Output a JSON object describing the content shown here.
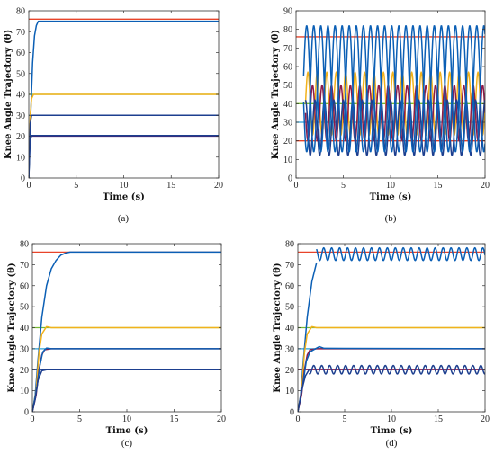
{
  "chart_data": [
    {
      "panel_label": "(a)",
      "type": "line",
      "xlabel": "Time (s)",
      "ylabel": "Knee Angle Trajectory (θ)",
      "xlim": [
        0,
        20
      ],
      "ylim": [
        0,
        80
      ],
      "x_ticks": [
        0,
        5,
        10,
        15,
        20
      ],
      "y_ticks": [
        0,
        10,
        20,
        30,
        40,
        50,
        60,
        70,
        80
      ],
      "grid": false,
      "series": [
        {
          "kind": "ref",
          "color": "#e8442a",
          "x": [
            0,
            20
          ],
          "y": [
            76,
            76
          ]
        },
        {
          "kind": "ref",
          "color": "#77bb33",
          "x": [
            0,
            20
          ],
          "y": [
            40,
            40
          ]
        },
        {
          "kind": "ref",
          "color": "#2a9fd6",
          "x": [
            0,
            20
          ],
          "y": [
            30,
            30
          ]
        },
        {
          "kind": "ref",
          "color": "#4d1f6e",
          "x": [
            0,
            20
          ],
          "y": [
            20,
            20
          ]
        },
        {
          "color": "#0b5fb5",
          "x": [
            0,
            0.2,
            0.4,
            0.6,
            0.8,
            1.0,
            1.5,
            20
          ],
          "y": [
            0,
            30,
            55,
            68,
            73,
            75,
            75,
            75
          ]
        },
        {
          "color": "#f2b21c",
          "x": [
            0,
            0.15,
            0.3,
            0.5,
            0.8,
            20
          ],
          "y": [
            0,
            30,
            38,
            40,
            40,
            40
          ]
        },
        {
          "color": "#1d3f8f",
          "x": [
            0,
            0.15,
            0.3,
            0.5,
            20
          ],
          "y": [
            0,
            26,
            30,
            30,
            30
          ]
        },
        {
          "color": "#1d3f8f",
          "x": [
            0,
            0.15,
            0.3,
            0.5,
            20
          ],
          "y": [
            0,
            18,
            20.3,
            20.3,
            20.3
          ]
        }
      ]
    },
    {
      "panel_label": "(b)",
      "type": "line",
      "xlabel": "Time (s)",
      "ylabel": "Knee Angle Trajectory (θ)",
      "xlim": [
        0,
        20
      ],
      "ylim": [
        0,
        90
      ],
      "x_ticks": [
        0,
        5,
        10,
        15,
        20
      ],
      "y_ticks": [
        0,
        10,
        20,
        30,
        40,
        50,
        60,
        70,
        80,
        90
      ],
      "grid": false,
      "series": [
        {
          "kind": "ref",
          "color": "#e8442a",
          "x": [
            0,
            20
          ],
          "y": [
            76,
            76
          ]
        },
        {
          "kind": "ref",
          "color": "#77bb33",
          "x": [
            0,
            20
          ],
          "y": [
            40,
            40
          ]
        },
        {
          "kind": "ref",
          "color": "#2a9fd6",
          "x": [
            0,
            20
          ],
          "y": [
            30,
            30
          ]
        },
        {
          "kind": "ref",
          "color": "#e8442a",
          "x": [
            0,
            20
          ],
          "y": [
            20,
            20
          ]
        },
        {
          "kind": "osc",
          "color": "#f2b21c",
          "start": 1.0,
          "center": 40,
          "amp": 17,
          "period": 1.0,
          "phase": 0.0
        },
        {
          "kind": "osc",
          "color": "#8b1a4a",
          "start": 1.0,
          "center": 35,
          "amp": 15,
          "period": 1.0,
          "phase": 0.5
        },
        {
          "kind": "osc",
          "color": "#1d3f8f",
          "start": 1.0,
          "center": 27,
          "amp": 15,
          "period": 1.0,
          "phase": 0.25
        },
        {
          "kind": "osc",
          "color": "#0b5fb5",
          "start": 0.8,
          "center": 48,
          "amp": 34,
          "period": 1.5,
          "phase": 0.0
        },
        {
          "kind": "osc",
          "color": "#0b5fb5",
          "start": 0.8,
          "center": 48,
          "amp": 34,
          "period": 1.5,
          "phase": 0.5
        }
      ]
    },
    {
      "panel_label": "(c)",
      "type": "line",
      "xlabel": "Time (s)",
      "ylabel": "Knee Angle Trajectory (θ)",
      "xlim": [
        0,
        20
      ],
      "ylim": [
        0,
        80
      ],
      "x_ticks": [
        0,
        5,
        10,
        15,
        20
      ],
      "y_ticks": [
        0,
        10,
        20,
        30,
        40,
        50,
        60,
        70,
        80
      ],
      "grid": false,
      "series": [
        {
          "kind": "ref",
          "color": "#e8442a",
          "x": [
            0,
            20
          ],
          "y": [
            76,
            76
          ]
        },
        {
          "kind": "ref",
          "color": "#77bb33",
          "x": [
            0,
            20
          ],
          "y": [
            40,
            40
          ]
        },
        {
          "kind": "ref",
          "color": "#2a9fd6",
          "x": [
            0,
            20
          ],
          "y": [
            30,
            30
          ]
        },
        {
          "kind": "ref",
          "color": "#1d3f8f",
          "x": [
            0,
            20
          ],
          "y": [
            20,
            20
          ]
        },
        {
          "color": "#0b5fb5",
          "x": [
            0,
            0.3,
            0.6,
            1.0,
            1.5,
            2.0,
            2.5,
            3.0,
            3.5,
            4.0,
            20
          ],
          "y": [
            0,
            8,
            25,
            45,
            60,
            68,
            72,
            74.5,
            75.5,
            76,
            76
          ]
        },
        {
          "color": "#f2b21c",
          "x": [
            0,
            0.4,
            0.7,
            1.0,
            1.5,
            2.0,
            20
          ],
          "y": [
            0,
            10,
            28,
            37,
            40.5,
            40,
            40
          ]
        },
        {
          "color": "#8b1a4a",
          "x": [
            0,
            0.4,
            0.7,
            1.0,
            1.3,
            2.0,
            20
          ],
          "y": [
            0,
            8,
            20,
            27,
            29.5,
            30,
            30
          ]
        },
        {
          "color": "#0b5fb5",
          "x": [
            0,
            0.5,
            0.8,
            1.1,
            1.5,
            2.0,
            20
          ],
          "y": [
            0,
            12,
            22,
            28.5,
            30.3,
            30,
            30
          ]
        },
        {
          "color": "#1d3f8f",
          "x": [
            0,
            0.3,
            0.6,
            1.0,
            1.5,
            20
          ],
          "y": [
            0,
            6,
            15,
            19.5,
            20,
            20
          ]
        }
      ]
    },
    {
      "panel_label": "(d)",
      "type": "line",
      "xlabel": "Time (s)",
      "ylabel": "Knee Angle Trajectory (θ)",
      "xlim": [
        0,
        20
      ],
      "ylim": [
        0,
        80
      ],
      "x_ticks": [
        0,
        5,
        10,
        15,
        20
      ],
      "y_ticks": [
        0,
        10,
        20,
        30,
        40,
        50,
        60,
        70,
        80
      ],
      "grid": false,
      "series": [
        {
          "kind": "ref",
          "color": "#e8442a",
          "x": [
            0,
            20
          ],
          "y": [
            76,
            76
          ]
        },
        {
          "kind": "ref",
          "color": "#77bb33",
          "x": [
            0,
            20
          ],
          "y": [
            40,
            40
          ]
        },
        {
          "kind": "ref",
          "color": "#2a9fd6",
          "x": [
            0,
            20
          ],
          "y": [
            30,
            30
          ]
        },
        {
          "kind": "ref",
          "color": "#8b1a4a",
          "x": [
            0,
            20
          ],
          "y": [
            20,
            20
          ]
        },
        {
          "color": "#0b5fb5",
          "x": [
            0,
            0.3,
            0.6,
            1.0,
            1.5,
            2.0
          ],
          "y": [
            0,
            8,
            25,
            45,
            62,
            71
          ]
        },
        {
          "kind": "osc",
          "color": "#0b5fb5",
          "start": 2.0,
          "center": 75,
          "amp": 3,
          "period": 0.85,
          "phase": 0.0
        },
        {
          "color": "#f2b21c",
          "x": [
            0,
            0.4,
            0.7,
            1.0,
            1.5,
            2.0,
            20
          ],
          "y": [
            0,
            10,
            28,
            37,
            40.5,
            40,
            40
          ]
        },
        {
          "color": "#8b1a4a",
          "x": [
            0,
            0.4,
            0.7,
            1.0,
            1.3,
            2.0,
            20
          ],
          "y": [
            0,
            8,
            20,
            27,
            29.5,
            30,
            30
          ]
        },
        {
          "color": "#0b5fb5",
          "x": [
            0,
            0.5,
            0.9,
            1.3,
            1.8,
            2.3,
            2.8,
            20
          ],
          "y": [
            0,
            12,
            24,
            28.5,
            29.8,
            31,
            30.2,
            30
          ]
        },
        {
          "color": "#1d3f8f",
          "x": [
            0,
            0.4,
            0.8,
            1.2
          ],
          "y": [
            0,
            10,
            17,
            20
          ]
        },
        {
          "kind": "osc",
          "color": "#1d3f8f",
          "start": 1.2,
          "center": 20,
          "amp": 2,
          "period": 0.85,
          "phase": 0.25
        }
      ]
    }
  ]
}
